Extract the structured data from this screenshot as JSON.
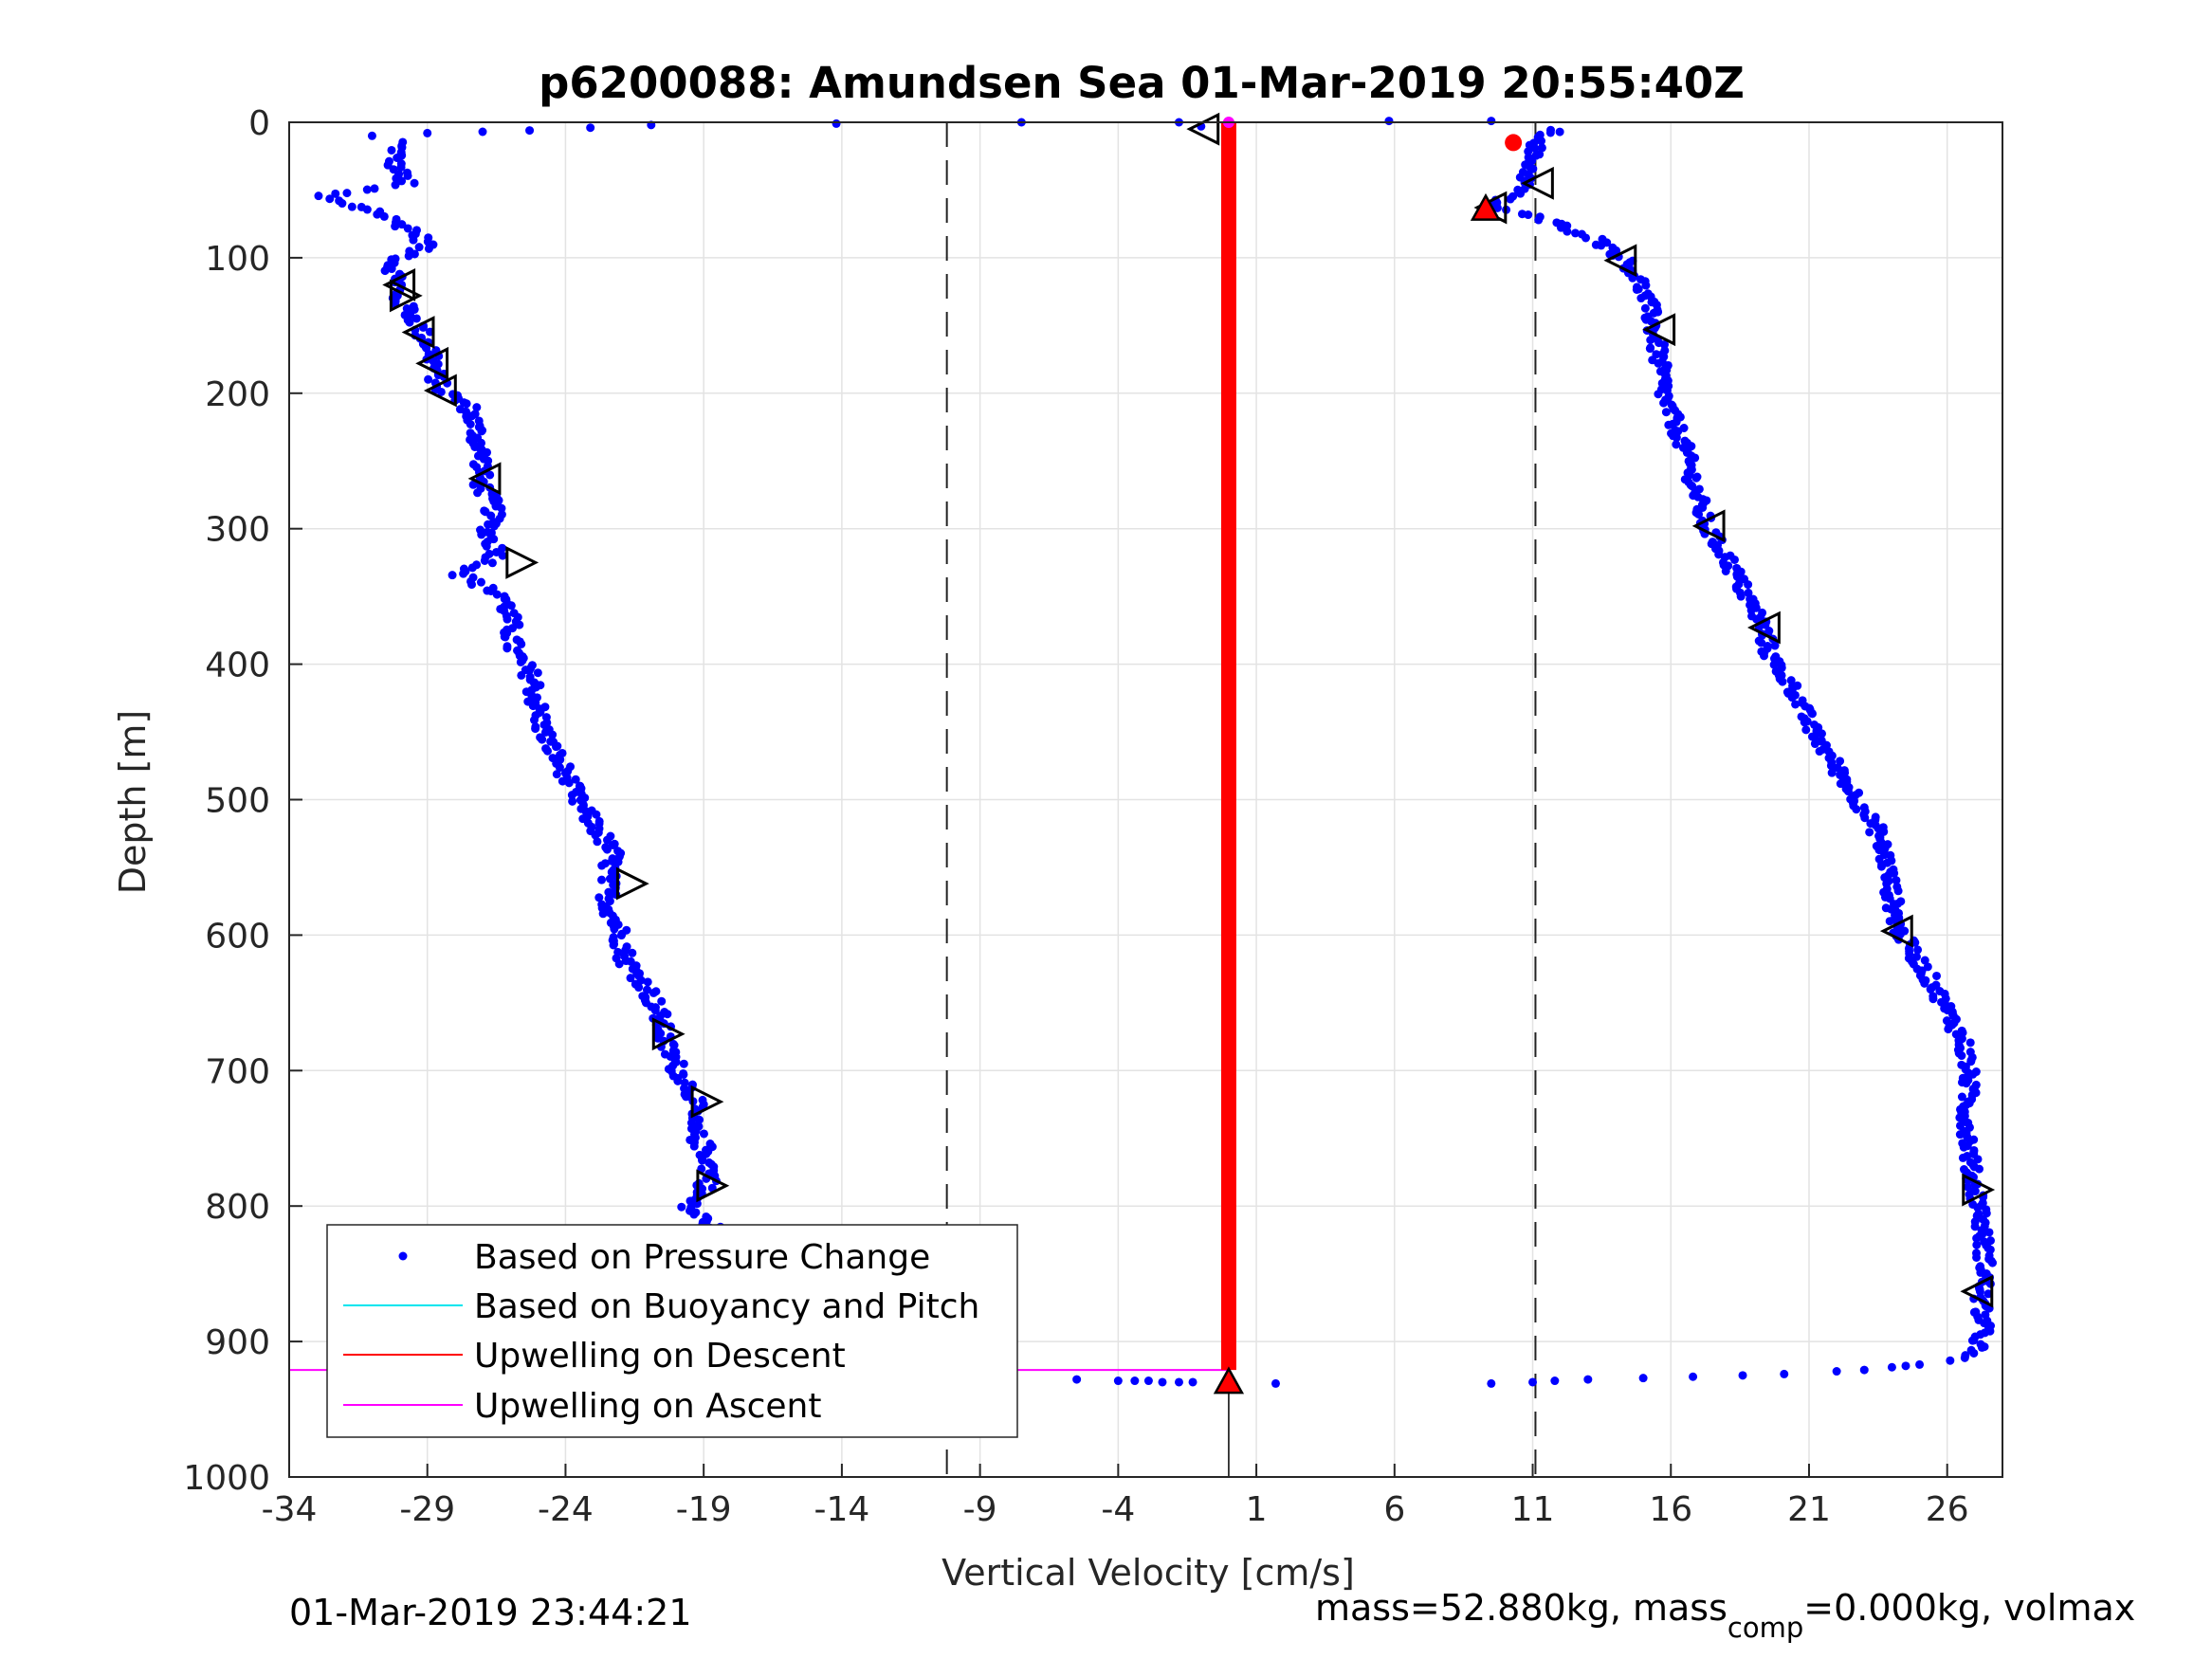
{
  "title": "p6200088: Amundsen Sea 01-Mar-2019 20:55:40Z",
  "xlabel": "Vertical Velocity [cm/s]",
  "ylabel": "Depth [m]",
  "timestamp": "01-Mar-2019 23:44:21",
  "mass_text": {
    "prefix": "mass=52.880kg, mass",
    "sub": "comp",
    "suffix": "=0.000kg, volmax"
  },
  "legend": [
    {
      "label": "Based on Pressure Change",
      "color": "#0000ff",
      "marker": "dot"
    },
    {
      "label": "Based on Buoyancy and Pitch",
      "color": "#00e5ee",
      "marker": "line"
    },
    {
      "label": "Upwelling on Descent",
      "color": "#ff0000",
      "marker": "line"
    },
    {
      "label": "Upwelling on Ascent",
      "color": "#ff00ff",
      "marker": "line"
    }
  ],
  "chart_data": {
    "type": "scatter",
    "title": "p6200088: Amundsen Sea 01-Mar-2019 20:55:40Z",
    "xlabel": "Vertical Velocity [cm/s]",
    "ylabel": "Depth [m]",
    "xlim": [
      -34,
      28
    ],
    "ylim": [
      1000,
      0
    ],
    "y_reversed": true,
    "grid": true,
    "legend_position": "bottom-left",
    "xticks": [
      -34,
      -29,
      -24,
      -19,
      -14,
      -9,
      -4,
      1,
      6,
      11,
      16,
      21,
      26
    ],
    "yticks": [
      0,
      100,
      200,
      300,
      400,
      500,
      600,
      700,
      800,
      900,
      1000
    ],
    "reference_lines_x": [
      -10.2,
      11.1
    ],
    "upwelling_on_descent_x": 0.0,
    "upwelling_depth_bottom": 921,
    "ascent_line_depths": [
      0,
      921
    ],
    "series": [
      {
        "name": "Based on Pressure Change",
        "color": "#0000ff",
        "descent_profile": [
          [
            -30.0,
            15
          ],
          [
            -30.2,
            30
          ],
          [
            -29.8,
            45
          ],
          [
            -33.0,
            55
          ],
          [
            -31.0,
            65
          ],
          [
            -29.5,
            80
          ],
          [
            -29.0,
            90
          ],
          [
            -30.3,
            105
          ],
          [
            -30.0,
            118
          ],
          [
            -30.2,
            128
          ],
          [
            -29.6,
            140
          ],
          [
            -29.2,
            155
          ],
          [
            -28.8,
            170
          ],
          [
            -28.7,
            185
          ],
          [
            -28.6,
            195
          ],
          [
            -27.5,
            210
          ],
          [
            -27.2,
            230
          ],
          [
            -27.0,
            250
          ],
          [
            -27.1,
            265
          ],
          [
            -26.6,
            285
          ],
          [
            -26.8,
            305
          ],
          [
            -26.4,
            320
          ],
          [
            -27.8,
            335
          ],
          [
            -26.2,
            350
          ],
          [
            -26.0,
            370
          ],
          [
            -25.9,
            390
          ],
          [
            -25.2,
            410
          ],
          [
            -25.0,
            435
          ],
          [
            -24.7,
            455
          ],
          [
            -24.0,
            480
          ],
          [
            -23.6,
            500
          ],
          [
            -22.9,
            520
          ],
          [
            -22.3,
            540
          ],
          [
            -22.5,
            560
          ],
          [
            -22.4,
            580
          ],
          [
            -22.0,
            600
          ],
          [
            -21.8,
            620
          ],
          [
            -21.0,
            640
          ],
          [
            -20.6,
            660
          ],
          [
            -20.4,
            680
          ],
          [
            -19.9,
            700
          ],
          [
            -19.3,
            720
          ],
          [
            -19.5,
            740
          ],
          [
            -18.9,
            760
          ],
          [
            -18.7,
            780
          ],
          [
            -19.6,
            800
          ],
          [
            -18.4,
            820
          ],
          [
            -18.8,
            840
          ],
          [
            -18.5,
            860
          ],
          [
            -18.6,
            880
          ],
          [
            -18.4,
            900
          ],
          [
            -18.1,
            915
          ]
        ],
        "ascent_profile": [
          [
            11.8,
            5
          ],
          [
            11.0,
            20
          ],
          [
            10.9,
            35
          ],
          [
            10.6,
            50
          ],
          [
            9.4,
            62
          ],
          [
            11.4,
            72
          ],
          [
            13.2,
            85
          ],
          [
            14.3,
            100
          ],
          [
            14.8,
            115
          ],
          [
            15.2,
            135
          ],
          [
            15.4,
            155
          ],
          [
            15.6,
            180
          ],
          [
            15.8,
            205
          ],
          [
            16.3,
            230
          ],
          [
            16.7,
            255
          ],
          [
            17.0,
            280
          ],
          [
            17.3,
            300
          ],
          [
            18.0,
            320
          ],
          [
            18.6,
            345
          ],
          [
            19.3,
            370
          ],
          [
            19.6,
            395
          ],
          [
            20.5,
            420
          ],
          [
            21.0,
            445
          ],
          [
            21.8,
            470
          ],
          [
            22.6,
            495
          ],
          [
            23.4,
            520
          ],
          [
            23.8,
            545
          ],
          [
            24.0,
            570
          ],
          [
            24.2,
            595
          ],
          [
            25.0,
            620
          ],
          [
            25.6,
            640
          ],
          [
            26.1,
            660
          ],
          [
            26.6,
            680
          ],
          [
            26.8,
            705
          ],
          [
            26.7,
            730
          ],
          [
            26.8,
            755
          ],
          [
            26.9,
            780
          ],
          [
            27.2,
            800
          ],
          [
            27.3,
            825
          ],
          [
            27.4,
            850
          ],
          [
            27.2,
            870
          ],
          [
            27.3,
            890
          ],
          [
            27.1,
            905
          ],
          [
            26.0,
            915
          ]
        ],
        "surface_points": [
          [
            -31.0,
            10
          ],
          [
            -29.0,
            8
          ],
          [
            -27.0,
            7
          ],
          [
            -25.3,
            6
          ],
          [
            -23.1,
            4
          ],
          [
            -20.9,
            2
          ],
          [
            -14.2,
            1
          ],
          [
            -7.5,
            0
          ],
          [
            -1.8,
            0
          ],
          [
            -1.0,
            3
          ],
          [
            5.8,
            -1
          ],
          [
            9.5,
            -1
          ]
        ],
        "bottom_points": [
          [
            -17.5,
            927
          ],
          [
            -10.0,
            928
          ],
          [
            -5.5,
            928
          ],
          [
            -4.0,
            929
          ],
          [
            -3.4,
            929
          ],
          [
            -2.9,
            929
          ],
          [
            -2.4,
            930
          ],
          [
            -1.8,
            930
          ],
          [
            -1.3,
            930
          ],
          [
            1.7,
            931
          ],
          [
            9.5,
            931
          ],
          [
            11.0,
            930
          ],
          [
            11.8,
            929
          ],
          [
            13.0,
            928
          ],
          [
            15.0,
            927
          ],
          [
            16.8,
            926
          ],
          [
            18.6,
            925
          ],
          [
            20.1,
            924
          ],
          [
            22.0,
            922
          ],
          [
            23.0,
            921
          ],
          [
            24.0,
            919
          ],
          [
            24.5,
            918
          ],
          [
            25.0,
            917
          ]
        ]
      },
      {
        "name": "Based on Buoyancy and Pitch",
        "color": "#00e5ee",
        "values": []
      },
      {
        "name": "Upwelling on Descent",
        "color": "#ff0000"
      },
      {
        "name": "Upwelling on Ascent",
        "color": "#ff00ff"
      }
    ],
    "triangle_markers": [
      {
        "x": -0.9,
        "y": 5,
        "dir": "left"
      },
      {
        "x": -30.0,
        "y": 120,
        "dir": "left"
      },
      {
        "x": -29.8,
        "y": 128,
        "dir": "right"
      },
      {
        "x": -29.3,
        "y": 155,
        "dir": "left"
      },
      {
        "x": -28.8,
        "y": 178,
        "dir": "left"
      },
      {
        "x": -28.5,
        "y": 198,
        "dir": "left"
      },
      {
        "x": -26.9,
        "y": 263,
        "dir": "left"
      },
      {
        "x": -25.6,
        "y": 325,
        "dir": "right"
      },
      {
        "x": -21.6,
        "y": 562,
        "dir": "right"
      },
      {
        "x": -20.3,
        "y": 673,
        "dir": "right"
      },
      {
        "x": -18.9,
        "y": 723,
        "dir": "right"
      },
      {
        "x": -18.7,
        "y": 785,
        "dir": "right"
      },
      {
        "x": -17.6,
        "y": 850,
        "dir": "right"
      },
      {
        "x": -17.7,
        "y": 905,
        "dir": "right"
      },
      {
        "x": 11.2,
        "y": 45,
        "dir": "left"
      },
      {
        "x": 9.5,
        "y": 63,
        "dir": "left"
      },
      {
        "x": 14.2,
        "y": 102,
        "dir": "left"
      },
      {
        "x": 15.6,
        "y": 153,
        "dir": "left"
      },
      {
        "x": 17.4,
        "y": 298,
        "dir": "left"
      },
      {
        "x": 19.4,
        "y": 373,
        "dir": "left"
      },
      {
        "x": 24.2,
        "y": 597,
        "dir": "left"
      },
      {
        "x": 27.1,
        "y": 788,
        "dir": "right"
      },
      {
        "x": 27.1,
        "y": 863,
        "dir": "left"
      }
    ],
    "red_markers": [
      {
        "x": 10.3,
        "y": 15,
        "shape": "circle"
      },
      {
        "x": 9.3,
        "y": 64,
        "shape": "triangle-up"
      },
      {
        "x": -17.9,
        "y": 925,
        "shape": "triangle-up"
      },
      {
        "x": 0.0,
        "y": 930,
        "shape": "triangle-up"
      }
    ]
  }
}
